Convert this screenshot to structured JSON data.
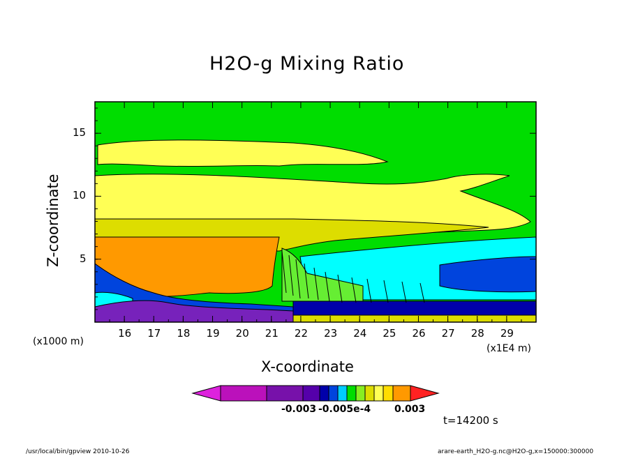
{
  "chart_data": {
    "type": "heatmap",
    "title": "H2O-g Mixing Ratio",
    "xlabel": "X-coordinate",
    "ylabel": "Z-coordinate",
    "x_unit_label": "(x1000 m)",
    "x_scale_label": "(x1E4 m)",
    "x_ticks": [
      "16",
      "17",
      "18",
      "19",
      "20",
      "21",
      "22",
      "23",
      "24",
      "25",
      "26",
      "27",
      "28",
      "29"
    ],
    "x_tick_values": [
      16,
      17,
      18,
      19,
      20,
      21,
      22,
      23,
      24,
      25,
      26,
      27,
      28,
      29
    ],
    "y_ticks": [
      "5",
      "10",
      "15"
    ],
    "y_tick_values": [
      5,
      10,
      15
    ],
    "xlim": [
      15,
      30
    ],
    "ylim": [
      0,
      17.5
    ],
    "colorbar": {
      "tick_labels": [
        "-0.003",
        "-0.005e-4",
        "0.003"
      ],
      "extend": "both"
    },
    "time_label": "t=14200 s",
    "colors": {
      "background_band": "#00dd00",
      "light_yellow": "#ffff55",
      "yellow": "#dddd00",
      "orange": "#ff9900",
      "cyan": "#00ffff",
      "blue": "#0044dd",
      "navy": "#0000aa",
      "purple": "#7722bb",
      "magenta": "#dd22dd",
      "red": "#ff2222"
    }
  },
  "footer": {
    "left": "/usr/local/bin/gpview  2010-10-26",
    "right": "arare-earth_H2O-g.nc@H2O-g,x=150000:300000"
  }
}
